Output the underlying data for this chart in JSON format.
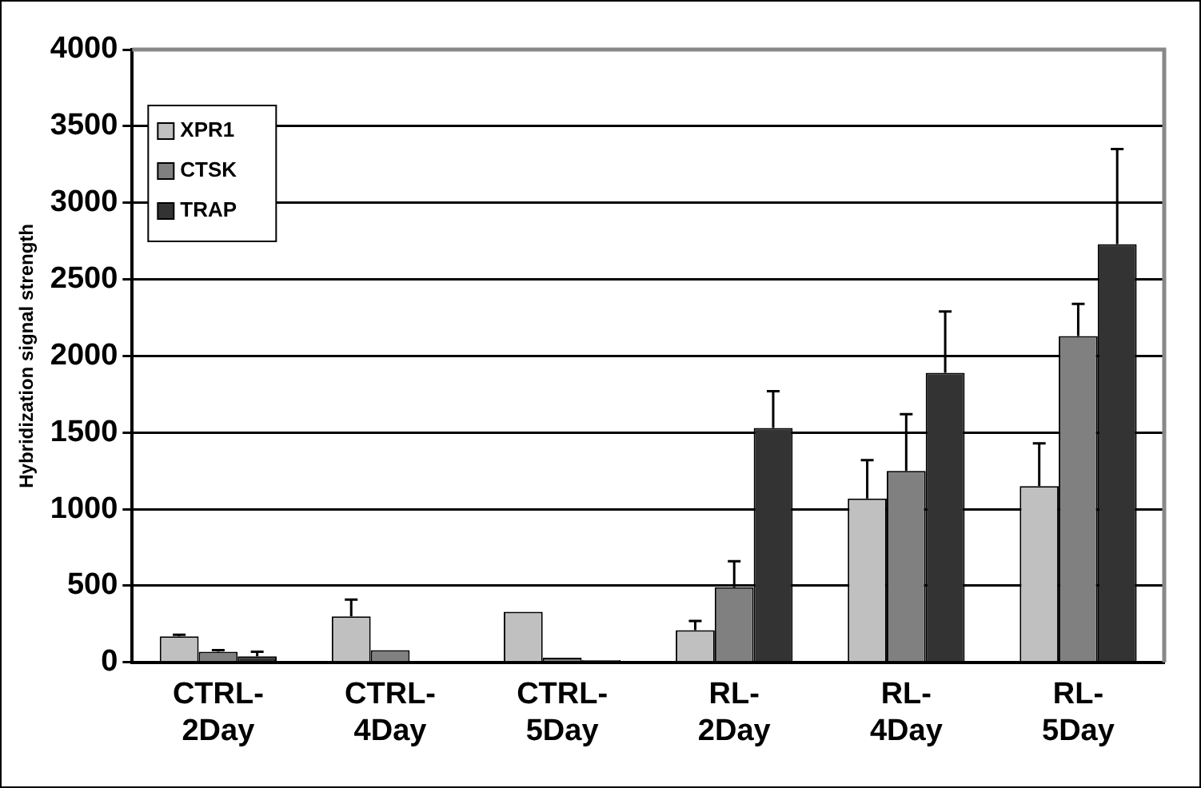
{
  "chart_data": {
    "type": "bar",
    "ylabel": "Hybridization signal strength",
    "categories": [
      "CTRL-\n2Day",
      "CTRL-\n4Day",
      "CTRL-\n5Day",
      "RL-\n2Day",
      "RL-\n4Day",
      "RL-\n5Day"
    ],
    "series": [
      {
        "name": "XPR1",
        "color": "#c0c0c0",
        "values": [
          170,
          300,
          330,
          210,
          1070,
          1150
        ],
        "errors": [
          10,
          110,
          null,
          60,
          250,
          280
        ]
      },
      {
        "name": "CTSK",
        "color": "#808080",
        "values": [
          70,
          80,
          30,
          490,
          1250,
          2130
        ],
        "errors": [
          10,
          null,
          null,
          170,
          370,
          210
        ]
      },
      {
        "name": "TRAP",
        "color": "#333333",
        "values": [
          40,
          10,
          15,
          1530,
          1890,
          2730
        ],
        "errors": [
          30,
          null,
          null,
          240,
          400,
          620
        ]
      }
    ],
    "ylim": [
      0,
      4000
    ],
    "yticks": [
      0,
      500,
      1000,
      1500,
      2000,
      2500,
      3000,
      3500,
      4000
    ],
    "grid": "y",
    "legend": "top left"
  }
}
